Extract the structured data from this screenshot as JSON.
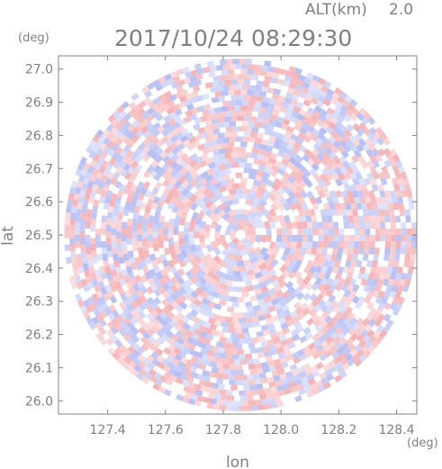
{
  "header": {
    "altitude_label": "ALT(km)",
    "altitude_value": "2.0",
    "timestamp": "2017/10/24 08:29:30"
  },
  "chart_data": {
    "type": "heatmap",
    "title": "2017/10/24 08:29:30",
    "xlabel": "lon",
    "ylabel": "lat",
    "x_unit": "(deg)",
    "y_unit": "(deg)",
    "xlim": [
      127.23,
      128.47
    ],
    "ylim": [
      25.96,
      27.04
    ],
    "x_ticks": [
      127.4,
      127.6,
      127.8,
      128.0,
      128.2,
      128.4
    ],
    "x_tick_labels": [
      "127.4",
      "127.6",
      "127.8",
      "128.0",
      "128.2",
      "128.4"
    ],
    "y_ticks": [
      26.0,
      26.1,
      26.2,
      26.3,
      26.4,
      26.5,
      26.6,
      26.7,
      26.8,
      26.9,
      27.0
    ],
    "y_tick_labels": [
      "26.0",
      "26.1",
      "26.2",
      "26.3",
      "26.4",
      "26.5",
      "26.6",
      "26.7",
      "26.8",
      "26.9",
      "27.0"
    ],
    "radar_center": {
      "lon": 127.86,
      "lat": 26.5
    },
    "radar_range_lon_deg": 0.61,
    "colors": {
      "positive": "#f4a5a8",
      "negative": "#a9b4f2",
      "neutral": "#ffffff",
      "axis": "#808080"
    },
    "grid": false
  }
}
